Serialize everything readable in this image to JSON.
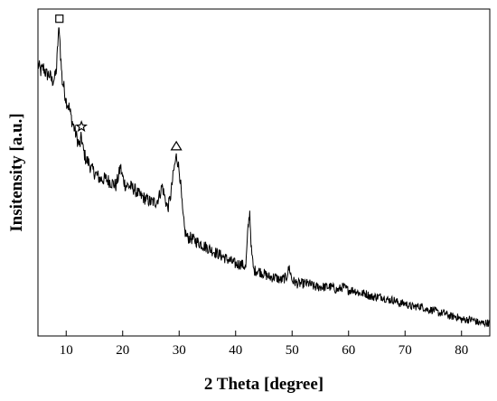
{
  "chart_data": {
    "type": "line",
    "title": "",
    "xlabel": "2 Theta [degree]",
    "ylabel": "Insitensity [a.u.]",
    "xlim": [
      5,
      85
    ],
    "ylim": [
      0,
      100
    ],
    "xticks": [
      10,
      20,
      30,
      40,
      50,
      60,
      70,
      80
    ],
    "yticks_shown": false,
    "grid": false,
    "legend": "none",
    "line_color": "#000000",
    "y_units_note": "arbitrary units, intensity expressed as percent of plot height",
    "series": [
      {
        "points": [
          [
            5.0,
            83
          ],
          [
            5.5,
            81
          ],
          [
            6.0,
            82
          ],
          [
            6.5,
            80
          ],
          [
            7.0,
            80
          ],
          [
            7.5,
            78
          ],
          [
            8.0,
            79
          ],
          [
            8.3,
            82
          ],
          [
            8.6,
            92
          ],
          [
            8.8,
            94
          ],
          [
            9.0,
            86
          ],
          [
            9.3,
            78
          ],
          [
            9.6,
            76
          ],
          [
            10.0,
            72
          ],
          [
            10.5,
            70
          ],
          [
            11.0,
            66
          ],
          [
            11.5,
            63
          ],
          [
            12.0,
            60
          ],
          [
            12.4,
            58
          ],
          [
            12.7,
            61
          ],
          [
            13.0,
            57
          ],
          [
            13.5,
            54
          ],
          [
            14.0,
            53
          ],
          [
            14.5,
            51
          ],
          [
            15.0,
            50
          ],
          [
            16.0,
            48
          ],
          [
            17.0,
            48
          ],
          [
            18.0,
            47
          ],
          [
            18.8,
            46
          ],
          [
            19.3,
            49
          ],
          [
            19.6,
            52
          ],
          [
            19.9,
            49
          ],
          [
            20.5,
            46
          ],
          [
            21.0,
            46
          ],
          [
            22.0,
            45
          ],
          [
            23.0,
            43
          ],
          [
            24.0,
            42
          ],
          [
            25.0,
            41
          ],
          [
            26.0,
            41
          ],
          [
            26.5,
            43
          ],
          [
            27.0,
            46
          ],
          [
            27.5,
            42
          ],
          [
            28.0,
            39
          ],
          [
            28.5,
            43
          ],
          [
            29.0,
            50
          ],
          [
            29.5,
            55
          ],
          [
            29.8,
            53
          ],
          [
            30.2,
            48
          ],
          [
            30.6,
            38
          ],
          [
            31.0,
            32
          ],
          [
            31.5,
            30
          ],
          [
            32.0,
            30
          ],
          [
            33.0,
            29
          ],
          [
            34.0,
            28
          ],
          [
            35.0,
            27
          ],
          [
            36.0,
            26
          ],
          [
            37.0,
            25
          ],
          [
            38.0,
            24
          ],
          [
            39.0,
            23
          ],
          [
            40.0,
            22
          ],
          [
            41.0,
            22
          ],
          [
            41.8,
            21
          ],
          [
            42.2,
            33
          ],
          [
            42.5,
            38
          ],
          [
            42.8,
            26
          ],
          [
            43.2,
            20
          ],
          [
            44.0,
            20
          ],
          [
            45.0,
            19
          ],
          [
            46.0,
            18
          ],
          [
            47.0,
            18
          ],
          [
            48.0,
            17
          ],
          [
            49.0,
            18
          ],
          [
            49.5,
            21
          ],
          [
            50.0,
            17
          ],
          [
            51.0,
            16
          ],
          [
            52.0,
            16
          ],
          [
            53.0,
            16
          ],
          [
            54.0,
            15
          ],
          [
            55.0,
            15
          ],
          [
            56.0,
            15
          ],
          [
            57.0,
            15
          ],
          [
            58.0,
            14
          ],
          [
            59.0,
            15
          ],
          [
            60.0,
            14
          ],
          [
            61.0,
            14
          ],
          [
            62.0,
            13
          ],
          [
            63.0,
            13
          ],
          [
            64.0,
            12
          ],
          [
            65.0,
            12
          ],
          [
            66.0,
            12
          ],
          [
            67.0,
            11
          ],
          [
            68.0,
            11
          ],
          [
            69.0,
            10
          ],
          [
            70.0,
            10
          ],
          [
            71.0,
            9
          ],
          [
            72.0,
            9
          ],
          [
            73.0,
            9
          ],
          [
            74.0,
            8
          ],
          [
            75.0,
            8
          ],
          [
            76.0,
            7
          ],
          [
            77.0,
            7
          ],
          [
            78.0,
            6
          ],
          [
            79.0,
            6
          ],
          [
            80.0,
            5
          ],
          [
            81.0,
            5
          ],
          [
            82.0,
            5
          ],
          [
            83.0,
            4
          ],
          [
            84.0,
            4
          ],
          [
            85.0,
            4
          ]
        ]
      }
    ],
    "markers": [
      {
        "shape": "square",
        "x": 8.8,
        "y": 94
      },
      {
        "shape": "star",
        "x": 12.7,
        "y": 61
      },
      {
        "shape": "triangle",
        "x": 29.5,
        "y": 55
      }
    ]
  }
}
